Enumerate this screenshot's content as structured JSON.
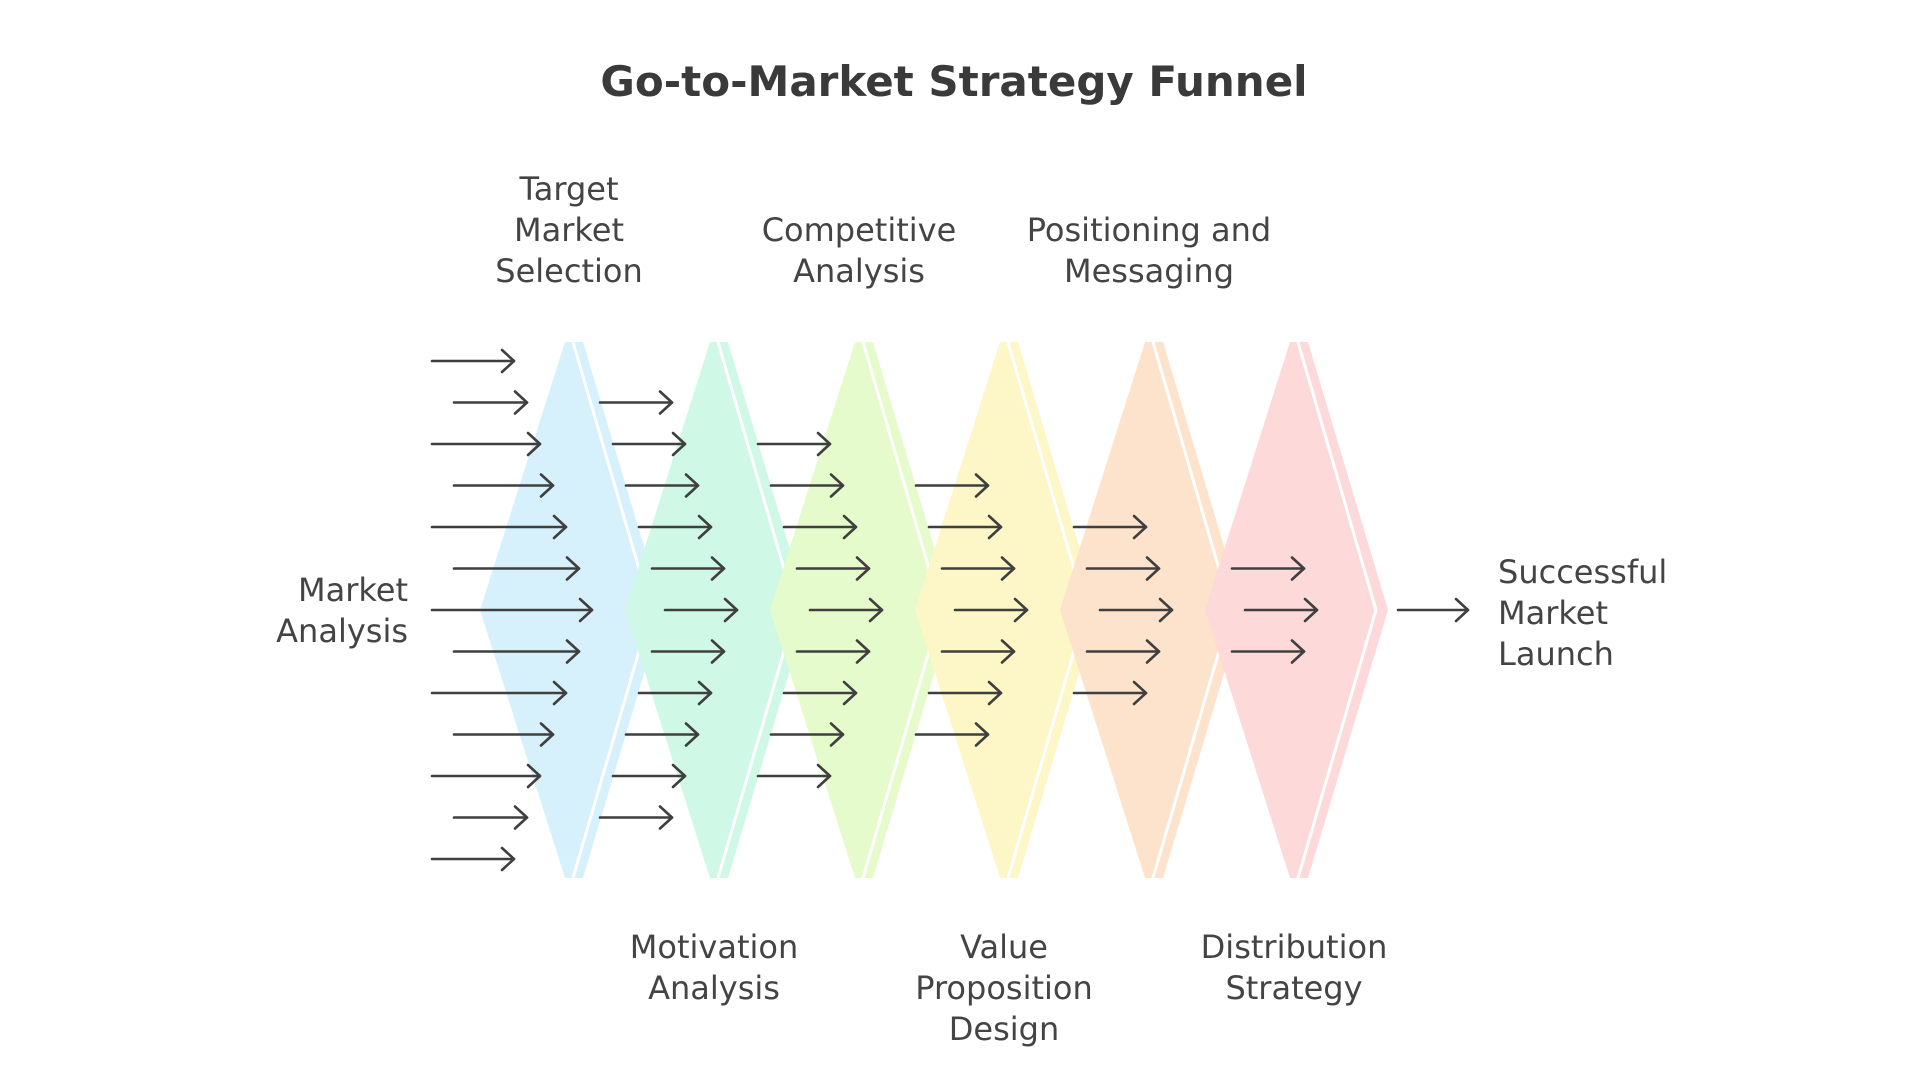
{
  "title": "Go-to-Market Strategy Funnel",
  "start_label": [
    "Market",
    "Analysis"
  ],
  "end_label": [
    "Successful",
    "Market",
    "Launch"
  ],
  "stages": [
    {
      "label": [
        "Target",
        "Market",
        "Selection"
      ],
      "position": "top",
      "color": "#d6f0fc",
      "arrows_in": 13
    },
    {
      "label": [
        "Motivation",
        "Analysis"
      ],
      "position": "bottom",
      "color": "#cff8e6",
      "arrows_in": 11
    },
    {
      "label": [
        "Competitive",
        "Analysis"
      ],
      "position": "top",
      "color": "#e6fbcc",
      "arrows_in": 9
    },
    {
      "label": [
        "Value",
        "Proposition",
        "Design"
      ],
      "position": "bottom",
      "color": "#fdf6c6",
      "arrows_in": 7
    },
    {
      "label": [
        "Positioning and",
        "Messaging"
      ],
      "position": "top",
      "color": "#fde3cb",
      "arrows_in": 5
    },
    {
      "label": [
        "Distribution",
        "Strategy"
      ],
      "position": "bottom",
      "color": "#fdd9d9",
      "arrows_in": 3
    }
  ],
  "final_arrows": 1,
  "ink_color": "#3f3f3f"
}
